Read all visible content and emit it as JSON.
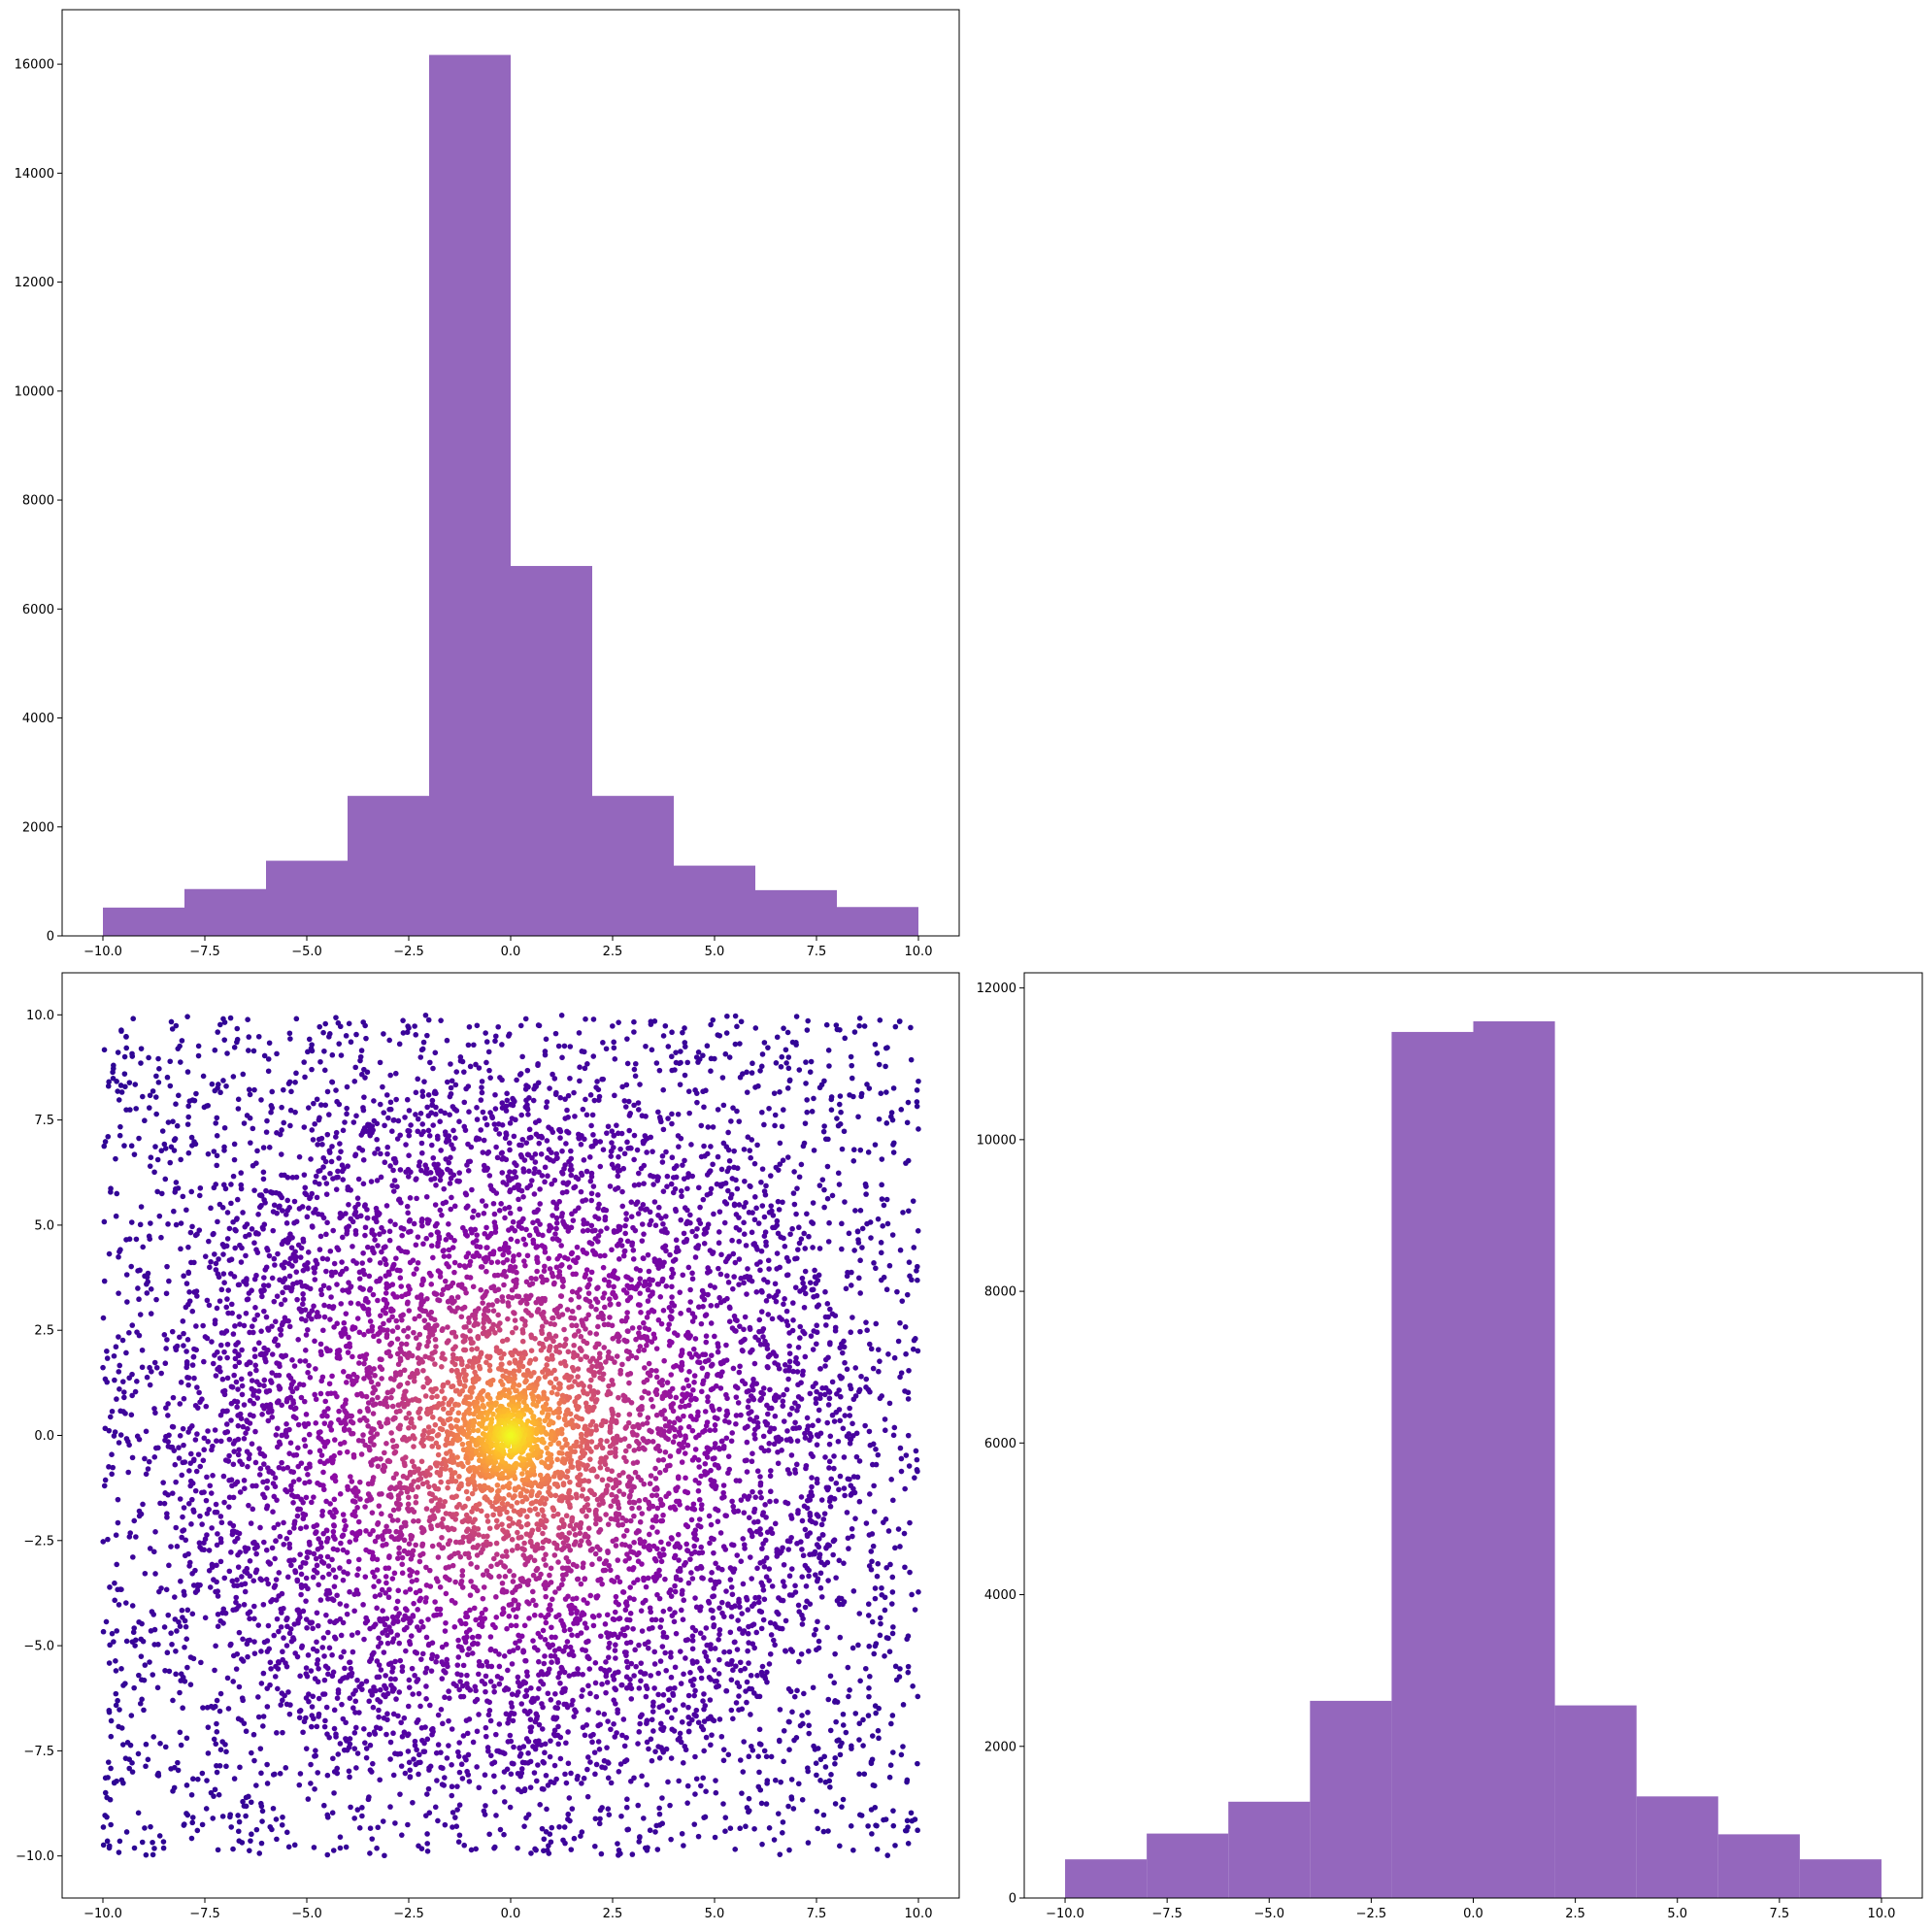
{
  "chart_data": [
    {
      "type": "bar",
      "panel": "top-left",
      "bin_edges": [
        -10,
        -8,
        -6,
        -4,
        -2,
        0,
        2,
        4,
        6,
        8,
        10
      ],
      "values": [
        520,
        860,
        1380,
        2570,
        16170,
        6790,
        2570,
        1290,
        840,
        530
      ],
      "xlim": [
        -11,
        11
      ],
      "ylim": [
        0,
        17000
      ],
      "xticks": [
        -10,
        -7.5,
        -5,
        -2.5,
        0,
        2.5,
        5,
        7.5,
        10
      ],
      "xtick_labels": [
        "−10.0",
        "−7.5",
        "−5.0",
        "−2.5",
        "0.0",
        "2.5",
        "5.0",
        "7.5",
        "10.0"
      ],
      "yticks": [
        0,
        2000,
        4000,
        6000,
        8000,
        10000,
        12000,
        14000,
        16000
      ],
      "ytick_labels": [
        "0",
        "2000",
        "4000",
        "6000",
        "8000",
        "10000",
        "12000",
        "14000",
        "16000"
      ],
      "color": "#9467bd",
      "title": "",
      "xlabel": "",
      "ylabel": ""
    },
    {
      "type": "scatter",
      "panel": "bottom-left",
      "distribution": "uniform square [-10,10] x [-10,10], colored by density around origin",
      "point_count": 9000,
      "x_range": [
        -10,
        10
      ],
      "y_range": [
        -10,
        10
      ],
      "xlim": [
        -11,
        11
      ],
      "ylim": [
        -11,
        11
      ],
      "xticks": [
        -10,
        -7.5,
        -5,
        -2.5,
        0,
        2.5,
        5,
        7.5,
        10
      ],
      "xtick_labels": [
        "−10.0",
        "−7.5",
        "−5.0",
        "−2.5",
        "0.0",
        "2.5",
        "5.0",
        "7.5",
        "10.0"
      ],
      "yticks": [
        -10,
        -7.5,
        -5,
        -2.5,
        0,
        2.5,
        5,
        7.5,
        10
      ],
      "ytick_labels": [
        "−10.0",
        "−7.5",
        "−5.0",
        "−2.5",
        "0.0",
        "2.5",
        "5.0",
        "7.5",
        "10.0"
      ],
      "colormap": "plasma",
      "colormap_stops": [
        "#0d0887",
        "#5302a3",
        "#8b0aa5",
        "#b83289",
        "#db5c68",
        "#f48849",
        "#febd2a",
        "#f0f921"
      ],
      "title": "",
      "xlabel": "",
      "ylabel": ""
    },
    {
      "type": "bar",
      "panel": "bottom-right",
      "bin_edges": [
        -10,
        -8,
        -6,
        -4,
        -2,
        0,
        2,
        4,
        6,
        8,
        10
      ],
      "values": [
        510,
        850,
        1270,
        2600,
        11420,
        11560,
        2540,
        1340,
        840,
        510
      ],
      "xlim": [
        -11,
        11
      ],
      "ylim": [
        0,
        12200
      ],
      "xticks": [
        -10,
        -7.5,
        -5,
        -2.5,
        0,
        2.5,
        5,
        7.5,
        10
      ],
      "xtick_labels": [
        "−10.0",
        "−7.5",
        "−5.0",
        "−2.5",
        "0.0",
        "2.5",
        "5.0",
        "7.5",
        "10.0"
      ],
      "yticks": [
        0,
        2000,
        4000,
        6000,
        8000,
        10000,
        12000
      ],
      "ytick_labels": [
        "0",
        "2000",
        "4000",
        "6000",
        "8000",
        "10000",
        "12000"
      ],
      "color": "#9467bd",
      "title": "",
      "xlabel": "",
      "ylabel": ""
    }
  ]
}
